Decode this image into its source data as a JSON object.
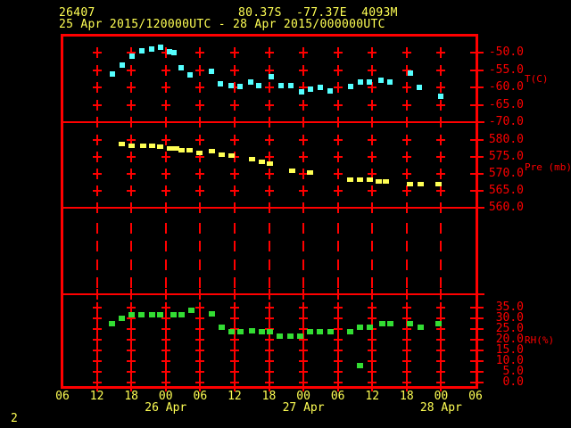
{
  "header": {
    "station_id": "26407",
    "position": "80.37S  -77.37E  4093M",
    "period": "25 Apr 2015/120000UTC - 28 Apr 2015/000000UTC"
  },
  "page_number": "2",
  "colors": {
    "background": "#000000",
    "frame_and_grid": "#ff0000",
    "axis_labels": "#ff0000",
    "header_text": "#ffff54",
    "temperature_points": "#55ffff",
    "pressure_points": "#ffff54",
    "humidity_points": "#33dd33"
  },
  "chart_data": {
    "type": "scatter",
    "title": "26407  80.37S -77.37E 4093M",
    "subtitle": "25 Apr 2015/120000UTC - 28 Apr 2015/000000UTC",
    "x_axis": {
      "description": "time, hours from 25 Apr 2015 06UTC",
      "range_hours": [
        0,
        72
      ],
      "tick_step_hours": 6,
      "hour_labels": [
        "06",
        "12",
        "18",
        "00",
        "06",
        "12",
        "18",
        "00",
        "06",
        "12",
        "18",
        "00",
        "06"
      ],
      "date_labels": [
        {
          "label": "26 Apr",
          "hour": 18
        },
        {
          "label": "27 Apr",
          "hour": 42
        },
        {
          "label": "28 Apr",
          "hour": 66
        }
      ]
    },
    "legend_position": "right",
    "grid": "tick-crosses at 6h x 1-division intersections",
    "panels": [
      {
        "name": "temperature",
        "axis_label": "T(C)",
        "color": "#55ffff",
        "ylim": [
          -70,
          -45
        ],
        "tick_values": [
          -50,
          -55,
          -60,
          -65,
          -70
        ],
        "tick_labels": [
          "-50.0",
          "-55.0",
          "-60.0",
          "-65.0",
          "-70.0"
        ],
        "points_hour_value": [
          [
            8.7,
            -56.2
          ],
          [
            10.4,
            -53.6
          ],
          [
            12.1,
            -51.0
          ],
          [
            13.8,
            -49.5
          ],
          [
            15.6,
            -49.0
          ],
          [
            17.1,
            -48.5
          ],
          [
            18.7,
            -49.7
          ],
          [
            19.4,
            -50.0
          ],
          [
            20.7,
            -54.4
          ],
          [
            22.2,
            -56.4
          ],
          [
            26.0,
            -55.4
          ],
          [
            27.5,
            -59.0
          ],
          [
            29.4,
            -59.5
          ],
          [
            30.9,
            -59.7
          ],
          [
            32.8,
            -58.5
          ],
          [
            34.2,
            -59.5
          ],
          [
            36.4,
            -56.9
          ],
          [
            38.1,
            -59.5
          ],
          [
            39.8,
            -59.5
          ],
          [
            41.7,
            -61.3
          ],
          [
            43.2,
            -60.5
          ],
          [
            44.9,
            -60.0
          ],
          [
            46.7,
            -61.0
          ],
          [
            50.2,
            -59.7
          ],
          [
            51.9,
            -58.5
          ],
          [
            53.5,
            -58.5
          ],
          [
            55.5,
            -57.9
          ],
          [
            57.1,
            -58.5
          ],
          [
            60.6,
            -55.9
          ],
          [
            62.2,
            -60.0
          ],
          [
            65.9,
            -62.6
          ]
        ]
      },
      {
        "name": "pressure",
        "axis_label": "Pre (mb)",
        "color": "#ffff54",
        "ylim": [
          560,
          585
        ],
        "tick_values": [
          580,
          575,
          570,
          565,
          560
        ],
        "tick_labels": [
          "580.0",
          "575.0",
          "570.0",
          "565.0",
          "560.0"
        ],
        "points_hour_value": [
          [
            10.4,
            578.6
          ],
          [
            12.0,
            578.3
          ],
          [
            14.0,
            578.1
          ],
          [
            15.6,
            578.1
          ],
          [
            17.1,
            577.8
          ],
          [
            18.7,
            577.5
          ],
          [
            19.9,
            577.3
          ],
          [
            20.7,
            577.0
          ],
          [
            22.2,
            576.8
          ],
          [
            23.8,
            576.2
          ],
          [
            26.0,
            576.5
          ],
          [
            27.7,
            575.7
          ],
          [
            29.4,
            575.2
          ],
          [
            33.0,
            574.4
          ],
          [
            34.7,
            573.6
          ],
          [
            36.2,
            573.1
          ],
          [
            40.0,
            571.0
          ],
          [
            43.2,
            570.5
          ],
          [
            50.2,
            568.4
          ],
          [
            51.8,
            568.2
          ],
          [
            53.5,
            568.2
          ],
          [
            55.2,
            567.9
          ],
          [
            56.3,
            567.9
          ],
          [
            60.5,
            567.1
          ],
          [
            62.4,
            566.9
          ],
          [
            65.6,
            566.9
          ]
        ]
      },
      {
        "name": "humidity",
        "axis_label": "RH(%)",
        "color": "#33dd33",
        "ylim": [
          0,
          40
        ],
        "tick_values": [
          35,
          30,
          25,
          20,
          15,
          10,
          5,
          0
        ],
        "tick_labels": [
          "35.0",
          "30.0",
          "25.0",
          "20.0",
          "15.0",
          "10.0",
          "5.0",
          "0.0"
        ],
        "points_hour_value": [
          [
            8.6,
            27.5
          ],
          [
            10.3,
            30.0
          ],
          [
            12.0,
            31.7
          ],
          [
            13.7,
            31.7
          ],
          [
            15.6,
            31.7
          ],
          [
            17.1,
            31.7
          ],
          [
            19.3,
            31.7
          ],
          [
            20.7,
            31.7
          ],
          [
            22.4,
            33.8
          ],
          [
            26.0,
            32.1
          ],
          [
            27.7,
            25.9
          ],
          [
            29.4,
            23.8
          ],
          [
            31.1,
            23.8
          ],
          [
            33.0,
            24.2
          ],
          [
            34.7,
            23.8
          ],
          [
            36.2,
            23.8
          ],
          [
            37.9,
            21.7
          ],
          [
            39.8,
            21.7
          ],
          [
            41.5,
            21.7
          ],
          [
            43.2,
            23.8
          ],
          [
            44.9,
            23.8
          ],
          [
            46.7,
            23.8
          ],
          [
            50.2,
            23.8
          ],
          [
            51.8,
            8.1
          ],
          [
            51.9,
            25.9
          ],
          [
            53.5,
            25.9
          ],
          [
            55.7,
            27.5
          ],
          [
            57.1,
            27.5
          ],
          [
            60.6,
            27.5
          ],
          [
            62.4,
            25.9
          ],
          [
            65.6,
            27.5
          ]
        ]
      }
    ]
  }
}
